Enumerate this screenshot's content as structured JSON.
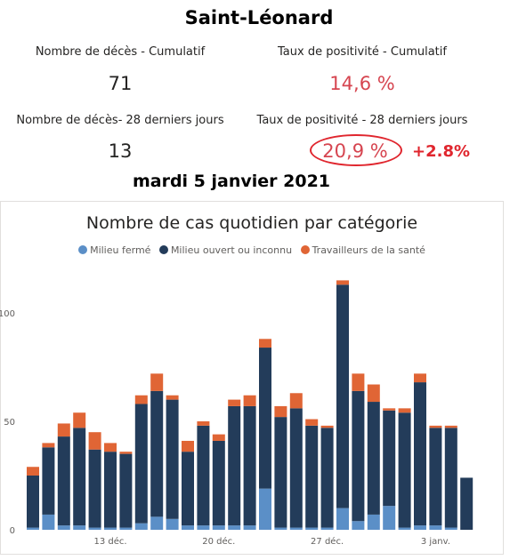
{
  "header": {
    "title": "Saint-Léonard",
    "date": "mardi 5 janvier 2021"
  },
  "kpis": [
    {
      "label": "Nombre de décès - Cumulatif",
      "value": "71",
      "color": "#252423"
    },
    {
      "label": "Taux de positivité - Cumulatif",
      "value": "14,6 %",
      "color": "#d64550"
    },
    {
      "label": "Nombre de décès- 28 derniers jours",
      "value": "13",
      "color": "#252423"
    },
    {
      "label": "Taux de positivité - 28 derniers jours",
      "value": "20,9 %",
      "color": "#d64550"
    }
  ],
  "annotation": {
    "delta": "+2.8%",
    "color": "#e0262e"
  },
  "colors": {
    "closed": "#5b8fc7",
    "open": "#233c5a",
    "health": "#e06535"
  },
  "chart_data": {
    "type": "bar",
    "stacked": true,
    "title": "Nombre de cas quotidien par catégorie",
    "categories": [
      "8 déc.",
      "9 déc.",
      "10 déc.",
      "11 déc.",
      "12 déc.",
      "13 déc.",
      "14 déc.",
      "15 déc.",
      "16 déc.",
      "17 déc.",
      "18 déc.",
      "19 déc.",
      "20 déc.",
      "21 déc.",
      "22 déc.",
      "23 déc.",
      "24 déc.",
      "25 déc.",
      "26 déc.",
      "27 déc.",
      "28 déc.",
      "29 déc.",
      "30 déc.",
      "31 déc.",
      "1 janv.",
      "2 janv.",
      "3 janv.",
      "4 janv.",
      "5 janv."
    ],
    "x_tick_labels": [
      {
        "index": 5,
        "label": "13 déc."
      },
      {
        "index": 12,
        "label": "20 déc."
      },
      {
        "index": 19,
        "label": "27 déc."
      },
      {
        "index": 26,
        "label": "3 janv."
      }
    ],
    "series": [
      {
        "name": "Milieu fermé",
        "values": [
          1,
          7,
          2,
          2,
          1,
          1,
          1,
          3,
          6,
          5,
          2,
          2,
          2,
          2,
          2,
          19,
          1,
          1,
          1,
          1,
          10,
          4,
          7,
          11,
          1,
          2,
          2,
          1,
          0
        ]
      },
      {
        "name": "Milieu ouvert ou inconnu",
        "values": [
          24,
          31,
          41,
          45,
          36,
          35,
          34,
          55,
          58,
          55,
          34,
          46,
          39,
          55,
          55,
          65,
          51,
          55,
          47,
          46,
          103,
          60,
          52,
          44,
          53,
          66,
          45,
          46,
          24
        ]
      },
      {
        "name": "Travailleurs de la santé",
        "values": [
          4,
          2,
          6,
          7,
          8,
          4,
          1,
          4,
          8,
          2,
          5,
          2,
          3,
          3,
          5,
          4,
          5,
          7,
          3,
          1,
          2,
          8,
          8,
          1,
          2,
          4,
          1,
          1,
          0
        ]
      }
    ],
    "y_ticks": [
      0,
      50,
      100
    ],
    "ylim": [
      0,
      118
    ],
    "legend_position": "top-center"
  }
}
